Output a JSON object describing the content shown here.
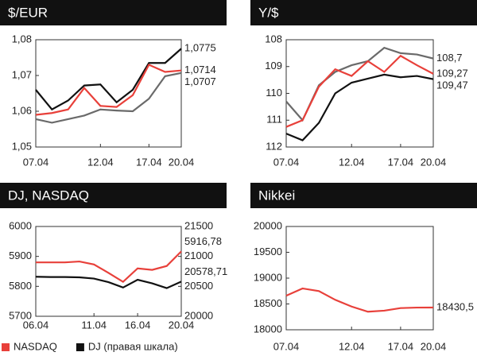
{
  "chart_data": [
    {
      "type": "line",
      "title": "$/EUR",
      "categories": [
        "07.04",
        null,
        null,
        null,
        "12.04",
        null,
        null,
        "17.04",
        null,
        "20.04"
      ],
      "ylim": [
        1.05,
        1.08
      ],
      "yticks": [
        {
          "value": 1.05,
          "label": "1,05"
        },
        {
          "value": 1.06,
          "label": "1,06"
        },
        {
          "value": 1.07,
          "label": "1,07"
        },
        {
          "value": 1.08,
          "label": "1,08"
        }
      ],
      "series": [
        {
          "color": "#111111",
          "values": [
            1.066,
            1.0605,
            1.063,
            1.0672,
            1.0675,
            1.0625,
            1.066,
            1.0735,
            1.0735,
            1.0775
          ],
          "value_labels": [
            null,
            null,
            null,
            null,
            null,
            null,
            null,
            null,
            null,
            "1,0775"
          ]
        },
        {
          "color": "#e8403a",
          "values": [
            1.059,
            1.0595,
            1.0605,
            1.0665,
            1.0615,
            1.0612,
            1.0645,
            1.073,
            1.071,
            1.0714
          ],
          "value_labels": [
            null,
            null,
            null,
            null,
            null,
            null,
            null,
            null,
            null,
            "1,0714"
          ]
        },
        {
          "color": "#6a6a6a",
          "values": [
            1.0578,
            1.0568,
            1.0578,
            1.0588,
            1.0605,
            1.0602,
            1.06,
            1.0635,
            1.0698,
            1.0707
          ],
          "value_labels": [
            null,
            null,
            null,
            null,
            null,
            null,
            null,
            null,
            null,
            "1,0707"
          ]
        }
      ]
    },
    {
      "type": "line",
      "title": "Y/$",
      "categories": [
        "07.04",
        null,
        null,
        null,
        "12.04",
        null,
        null,
        "17.04",
        null,
        "20.04"
      ],
      "ylim": [
        108,
        112
      ],
      "y_inverted": true,
      "yticks": [
        108,
        109,
        110,
        111,
        112
      ],
      "series": [
        {
          "color": "#6a6a6a",
          "values": [
            110.3,
            111.0,
            109.7,
            109.2,
            108.95,
            108.8,
            108.3,
            108.5,
            108.55,
            108.7
          ],
          "value_labels": [
            null,
            null,
            null,
            null,
            null,
            null,
            null,
            null,
            null,
            "108,7"
          ]
        },
        {
          "color": "#e8403a",
          "values": [
            111.25,
            111.0,
            109.75,
            109.1,
            109.35,
            108.8,
            109.2,
            108.6,
            108.95,
            109.27
          ],
          "value_labels": [
            null,
            null,
            null,
            null,
            null,
            null,
            null,
            null,
            null,
            "109,27"
          ]
        },
        {
          "color": "#111111",
          "values": [
            111.5,
            111.75,
            111.1,
            110.0,
            109.6,
            109.45,
            109.3,
            109.4,
            109.35,
            109.47
          ],
          "value_labels": [
            null,
            null,
            null,
            null,
            null,
            null,
            null,
            null,
            null,
            "109,47"
          ]
        }
      ]
    },
    {
      "type": "line",
      "title": "DJ, NASDAQ",
      "categories": [
        "06.04",
        null,
        null,
        null,
        "11.04",
        null,
        null,
        "16.04",
        null,
        null,
        "20.04"
      ],
      "ylim": [
        5700,
        6000
      ],
      "yticks": [
        5700,
        5800,
        5900,
        6000
      ],
      "y2lim": [
        20000,
        21500
      ],
      "y2ticks": [
        20000,
        20500,
        21000,
        21500
      ],
      "legend": "bottom",
      "series": [
        {
          "name": "NASDAQ",
          "color": "#e8403a",
          "values": [
            5880,
            5880,
            5880,
            5883,
            5873,
            5845,
            5815,
            5860,
            5855,
            5868,
            5916.78
          ],
          "value_labels": [
            null,
            null,
            null,
            null,
            null,
            null,
            null,
            null,
            null,
            null,
            "5916,78"
          ]
        },
        {
          "name": "DJ (правая шкала)",
          "color": "#111111",
          "axis": "y2",
          "values": [
            20660,
            20655,
            20655,
            20650,
            20630,
            20570,
            20480,
            20610,
            20550,
            20470,
            20578.71
          ],
          "value_labels": [
            null,
            null,
            null,
            null,
            null,
            null,
            null,
            null,
            null,
            null,
            "20578,71"
          ]
        }
      ]
    },
    {
      "type": "line",
      "title": "Nikkei",
      "categories": [
        "07.04",
        null,
        null,
        null,
        "12.04",
        null,
        null,
        "17.04",
        null,
        "20.04"
      ],
      "ylim": [
        18000,
        20000
      ],
      "yticks": [
        18000,
        18500,
        19000,
        19500,
        20000
      ],
      "series": [
        {
          "color": "#e8403a",
          "values": [
            18660,
            18800,
            18750,
            18580,
            18450,
            18350,
            18370,
            18420,
            18430,
            18430.5
          ],
          "value_labels": [
            null,
            null,
            null,
            null,
            null,
            null,
            null,
            null,
            null,
            "18430,5"
          ]
        }
      ]
    }
  ]
}
